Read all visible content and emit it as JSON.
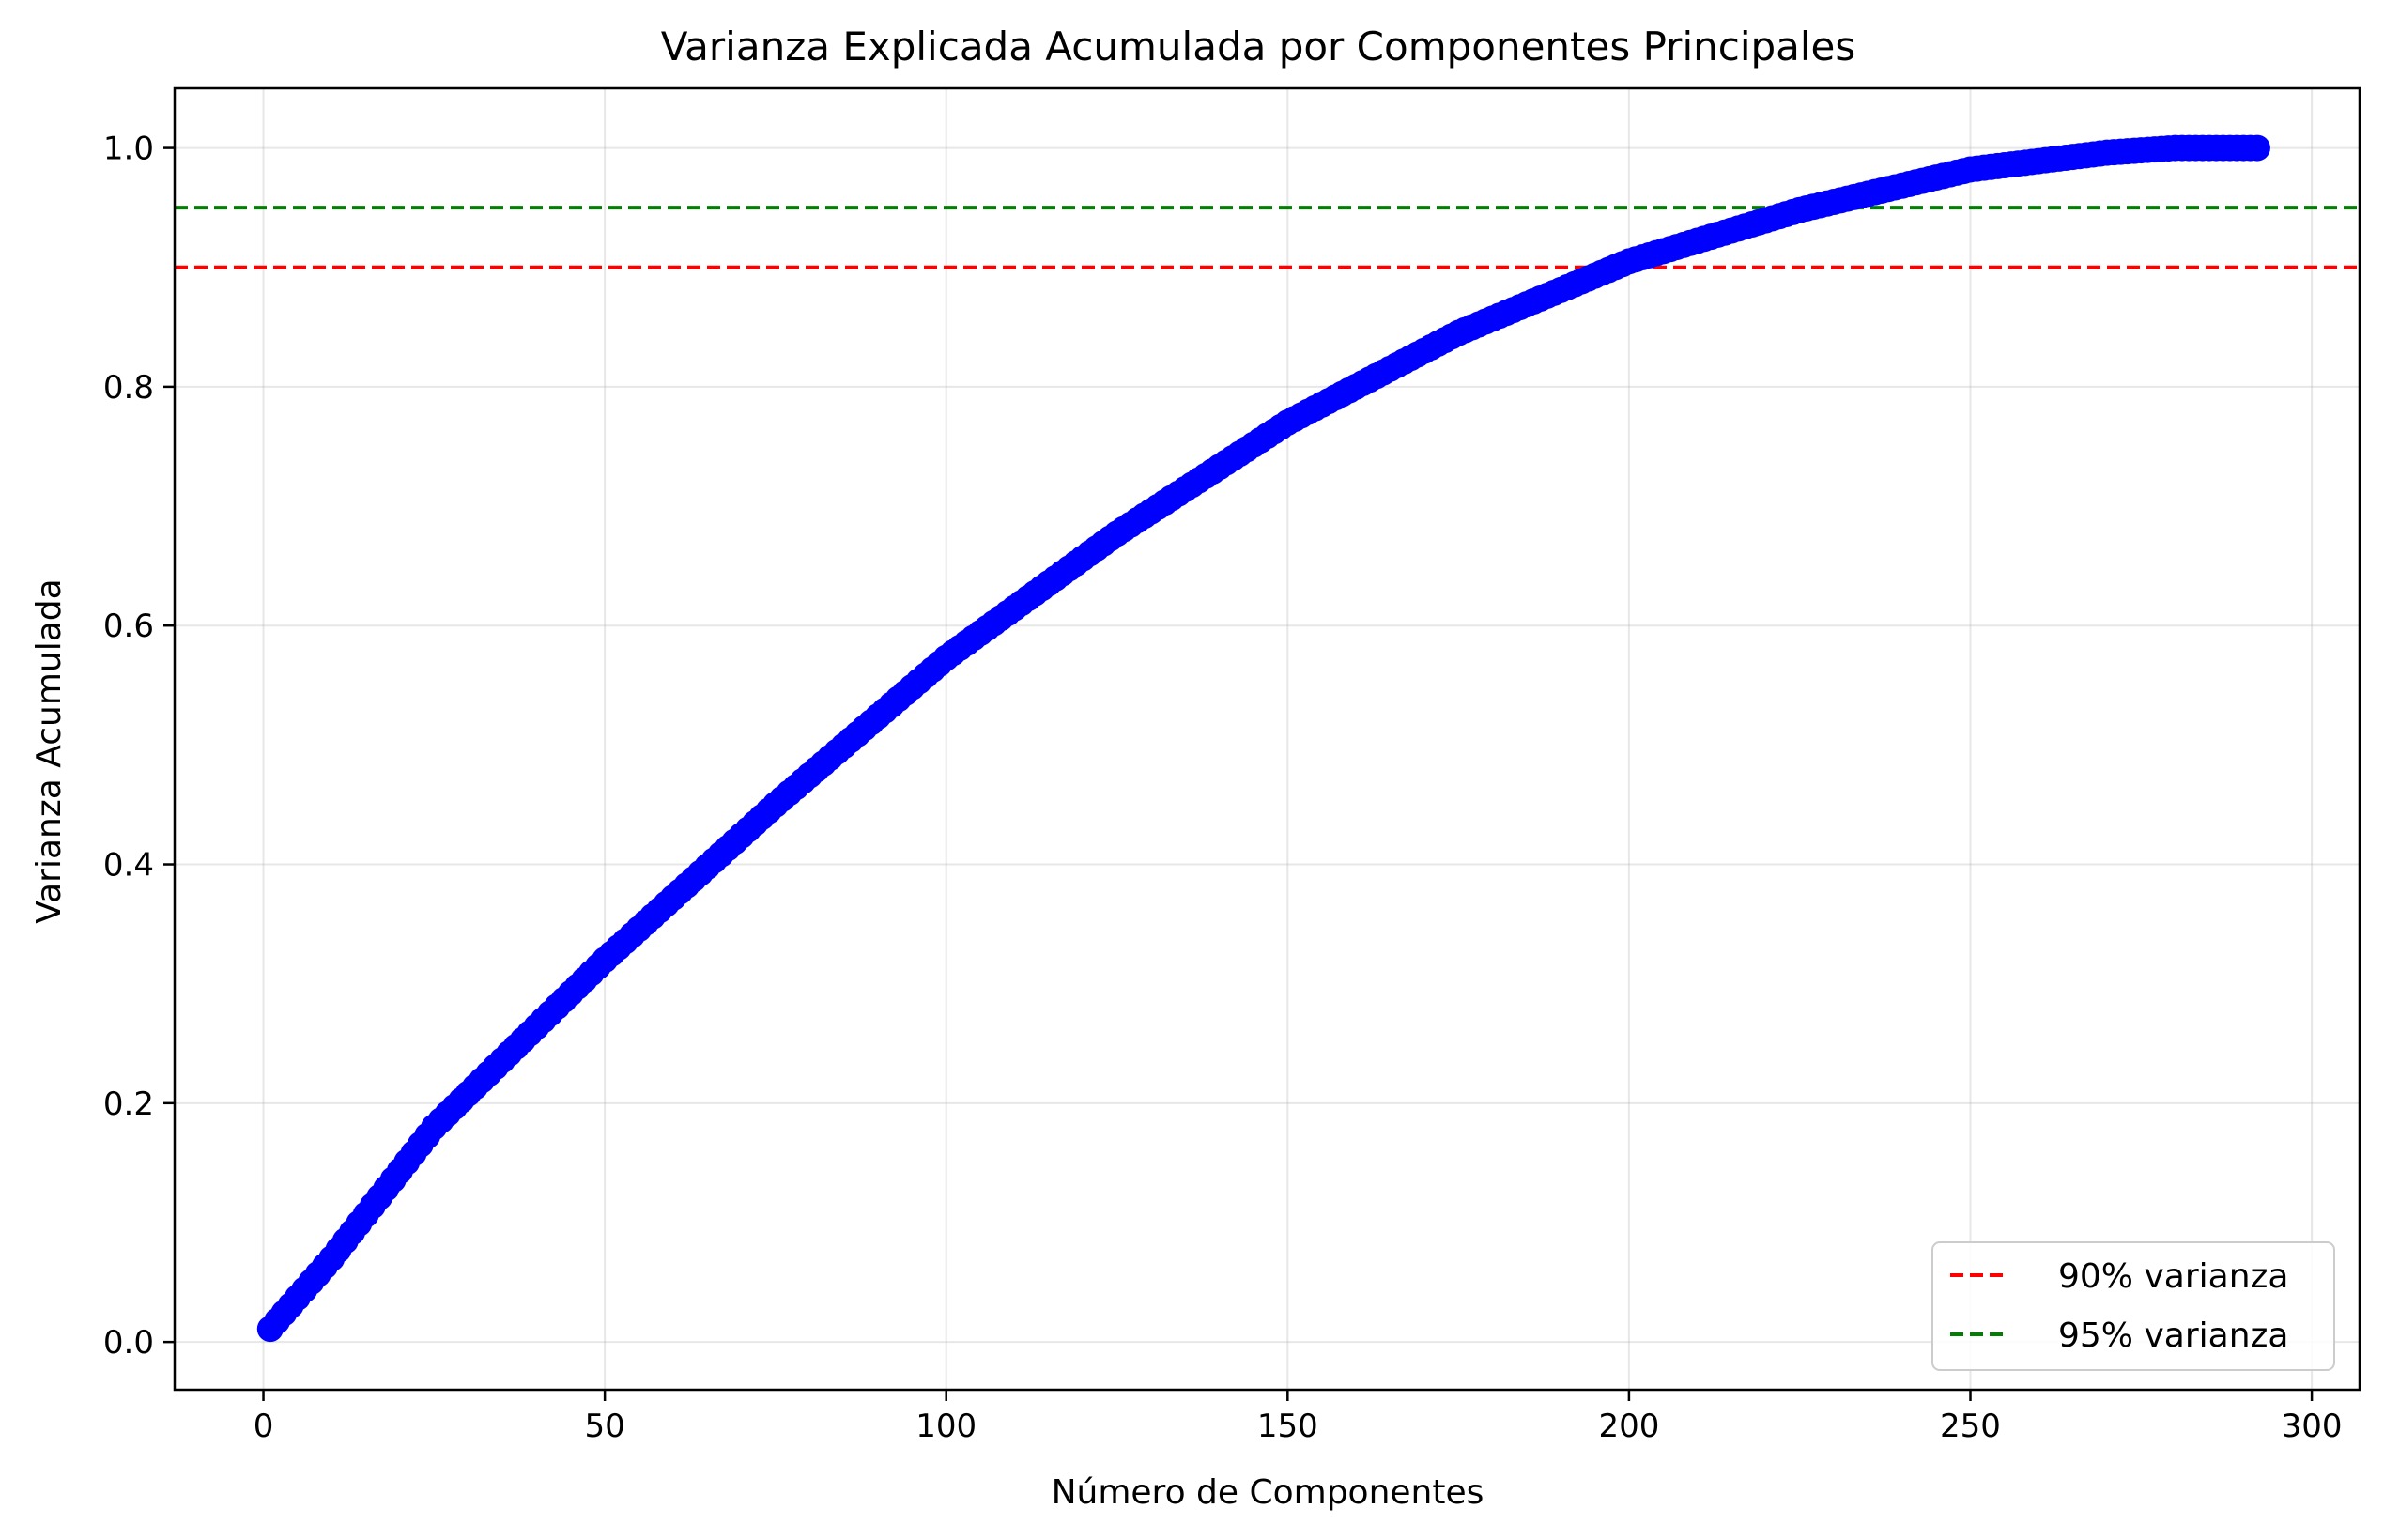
{
  "chart_data": {
    "type": "scatter",
    "title": "Varianza Explicada Acumulada por Componentes Principales",
    "xlabel": "Número de Componentes",
    "ylabel": "Varianza Acumulada",
    "xlim": [
      -13,
      307
    ],
    "ylim": [
      -0.04,
      1.05
    ],
    "xticks": [
      0,
      50,
      100,
      150,
      200,
      250,
      300
    ],
    "xtick_labels": [
      "0",
      "50",
      "100",
      "150",
      "200",
      "250",
      "300"
    ],
    "yticks": [
      0.0,
      0.2,
      0.4,
      0.6,
      0.8,
      1.0
    ],
    "ytick_labels": [
      "0.0",
      "0.2",
      "0.4",
      "0.6",
      "0.8",
      "1.0"
    ],
    "grid": true,
    "series": {
      "color": "#0000ff",
      "marker": "circle",
      "x_start": 1,
      "x_end": 292,
      "curve_points": [
        {
          "x": 1,
          "y": 0.011
        },
        {
          "x": 10,
          "y": 0.07
        },
        {
          "x": 25,
          "y": 0.18
        },
        {
          "x": 50,
          "y": 0.32
        },
        {
          "x": 75,
          "y": 0.45
        },
        {
          "x": 100,
          "y": 0.573
        },
        {
          "x": 125,
          "y": 0.677
        },
        {
          "x": 150,
          "y": 0.77
        },
        {
          "x": 175,
          "y": 0.845
        },
        {
          "x": 200,
          "y": 0.905
        },
        {
          "x": 225,
          "y": 0.948
        },
        {
          "x": 250,
          "y": 0.982
        },
        {
          "x": 270,
          "y": 0.996
        },
        {
          "x": 280,
          "y": 1.0
        },
        {
          "x": 292,
          "y": 1.0
        }
      ]
    },
    "hlines": [
      {
        "name": "90% varianza",
        "y": 0.9,
        "color": "#ff0000",
        "style": "dashed"
      },
      {
        "name": "95% varianza",
        "y": 0.95,
        "color": "#008000",
        "style": "dashed"
      }
    ],
    "legend": {
      "position": "bottom-right",
      "entries": [
        "90% varianza",
        "95% varianza"
      ]
    }
  }
}
